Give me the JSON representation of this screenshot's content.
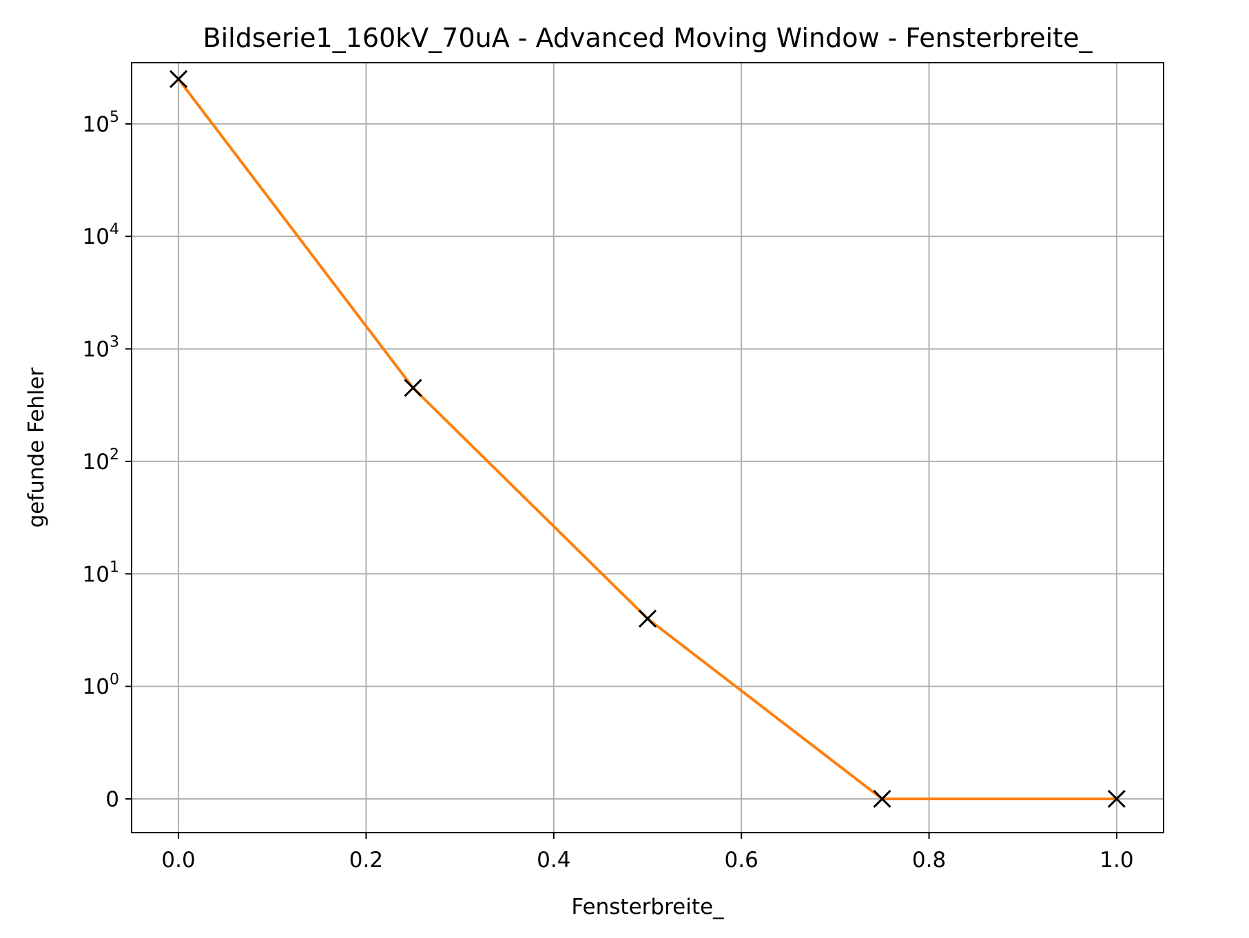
{
  "chart_data": {
    "type": "line",
    "title": "Bildserie1_160kV_70uA - Advanced Moving Window - Fensterbreite_",
    "xlabel": "Fensterbreite_",
    "ylabel": "gefunde Fehler",
    "xlim": [
      -0.05,
      1.05
    ],
    "y_scale": "symlog",
    "y_linthresh": 1,
    "ylim": [
      -0.3,
      350000
    ],
    "xticks": [
      {
        "value": 0.0,
        "label": "0.0"
      },
      {
        "value": 0.2,
        "label": "0.2"
      },
      {
        "value": 0.4,
        "label": "0.4"
      },
      {
        "value": 0.6,
        "label": "0.6"
      },
      {
        "value": 0.8,
        "label": "0.8"
      },
      {
        "value": 1.0,
        "label": "1.0"
      }
    ],
    "yticks": [
      {
        "value": 0,
        "label": "0",
        "base": "0",
        "exp": ""
      },
      {
        "value": 1,
        "label": "10^0",
        "base": "10",
        "exp": "0"
      },
      {
        "value": 10,
        "label": "10^1",
        "base": "10",
        "exp": "1"
      },
      {
        "value": 100,
        "label": "10^2",
        "base": "10",
        "exp": "2"
      },
      {
        "value": 1000,
        "label": "10^3",
        "base": "10",
        "exp": "3"
      },
      {
        "value": 10000,
        "label": "10^4",
        "base": "10",
        "exp": "4"
      },
      {
        "value": 100000,
        "label": "10^5",
        "base": "10",
        "exp": "5"
      }
    ],
    "grid": true,
    "series": [
      {
        "x": [
          0.0,
          0.25,
          0.5,
          0.75,
          1.0
        ],
        "y": [
          250000,
          450,
          4,
          0,
          0
        ],
        "line_color": "#ff7f0e",
        "marker": "x",
        "marker_color": "#000000"
      }
    ]
  }
}
